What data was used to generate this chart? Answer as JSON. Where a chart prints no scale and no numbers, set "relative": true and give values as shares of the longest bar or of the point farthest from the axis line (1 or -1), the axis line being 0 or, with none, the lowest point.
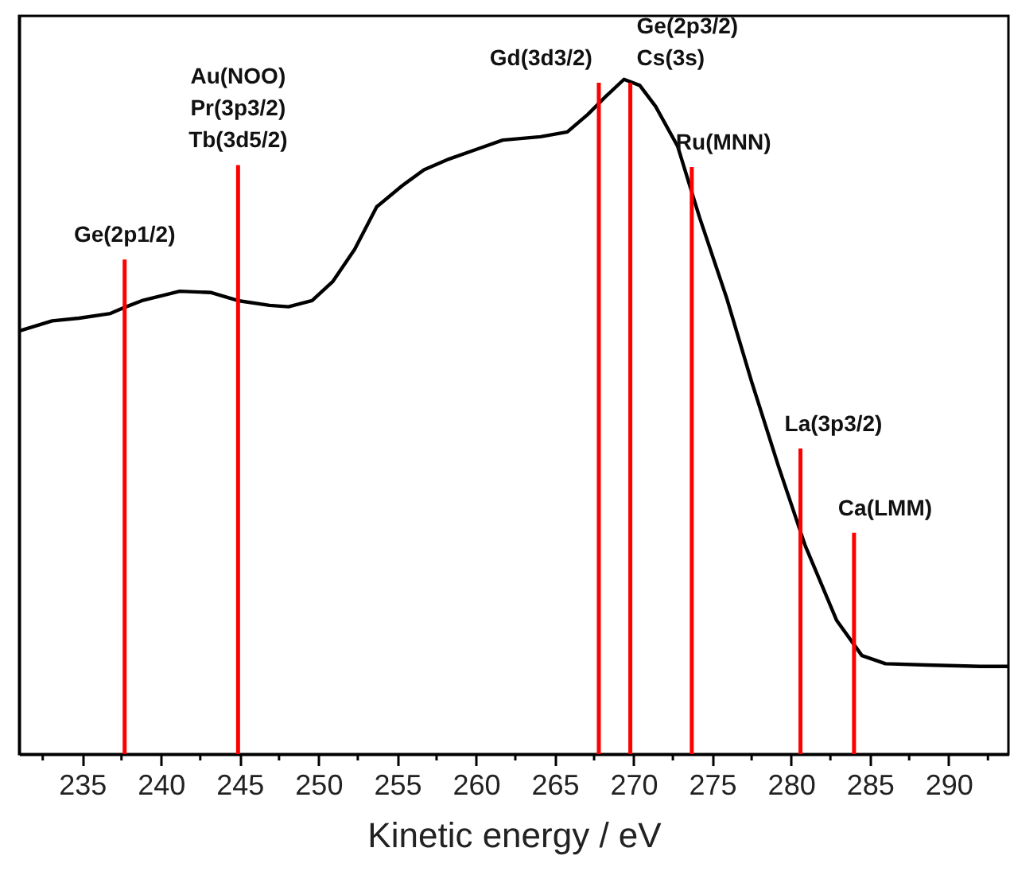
{
  "chart_data": {
    "type": "line",
    "relative": true,
    "xlabel": "Kinetic energy / eV",
    "xlim": [
      231.0,
      293.8
    ],
    "xticks": [
      {
        "value": 232.5,
        "label": null
      },
      235,
      {
        "value": 237.5,
        "label": null
      },
      240,
      {
        "value": 242.5,
        "label": null
      },
      245,
      {
        "value": 247.5,
        "label": null
      },
      250,
      {
        "value": 252.5,
        "label": null
      },
      255,
      {
        "value": 257.5,
        "label": null
      },
      260,
      {
        "value": 262.5,
        "label": null
      },
      265,
      {
        "value": 267.5,
        "label": null
      },
      270,
      {
        "value": 272.5,
        "label": null
      },
      275,
      {
        "value": 277.5,
        "label": null
      },
      280,
      {
        "value": 282.5,
        "label": null
      },
      285,
      {
        "value": 287.5,
        "label": null
      },
      290,
      {
        "value": 292.5,
        "label": null
      }
    ],
    "grid": false,
    "marker": "none",
    "line_style": "solid",
    "series": [
      {
        "color": "#000000",
        "x": [
          231.0,
          233.1,
          234.8,
          236.8,
          237.8,
          238.8,
          241.2,
          243.2,
          244.9,
          246.9,
          248.1,
          249.6,
          250.9,
          252.3,
          253.7,
          255.3,
          256.7,
          258.3,
          260.0,
          261.7,
          264.1,
          265.8,
          267.1,
          268.3,
          269.4,
          270.4,
          271.4,
          272.8,
          274.2,
          275.9,
          277.5,
          279.2,
          280.9,
          282.9,
          284.5,
          286.0,
          288.6,
          292.0,
          293.8
        ],
        "values": [
          0.627,
          0.642,
          0.646,
          0.653,
          0.663,
          0.672,
          0.686,
          0.684,
          0.672,
          0.665,
          0.663,
          0.672,
          0.7,
          0.748,
          0.811,
          0.842,
          0.866,
          0.882,
          0.896,
          0.91,
          0.915,
          0.922,
          0.948,
          0.976,
          1.0,
          0.991,
          0.96,
          0.901,
          0.795,
          0.677,
          0.552,
          0.427,
          0.309,
          0.198,
          0.146,
          0.134,
          0.132,
          0.13,
          0.13
        ]
      },
      {
        "type": "bar",
        "color": "#ff0000",
        "x": [
          237.7,
          244.9,
          267.8,
          269.8,
          273.7,
          280.6,
          284.0
        ],
        "values": [
          0.733,
          0.873,
          0.995,
          0.995,
          0.87,
          0.453,
          0.328
        ]
      }
    ],
    "annotations": [
      {
        "text": "Ge(2p1/2)",
        "x": 237.7,
        "y": 0.733
      },
      {
        "text": "Au(NOO)\nPr(3p3/2)\nTb(3d5/2)",
        "x": 244.9,
        "y": 0.873
      },
      {
        "text": "Gd(3d3/2)",
        "x": 267.8,
        "y": 0.995
      },
      {
        "text": "Ge(2p3/2)\nCs(3s)",
        "x": 269.8,
        "y": 0.995
      },
      {
        "text": "Ru(MNN)",
        "x": 273.7,
        "y": 0.87
      },
      {
        "text": "La(3p3/2)",
        "x": 280.6,
        "y": 0.453
      },
      {
        "text": "Ca(LMM)",
        "x": 284.0,
        "y": 0.328
      }
    ]
  }
}
